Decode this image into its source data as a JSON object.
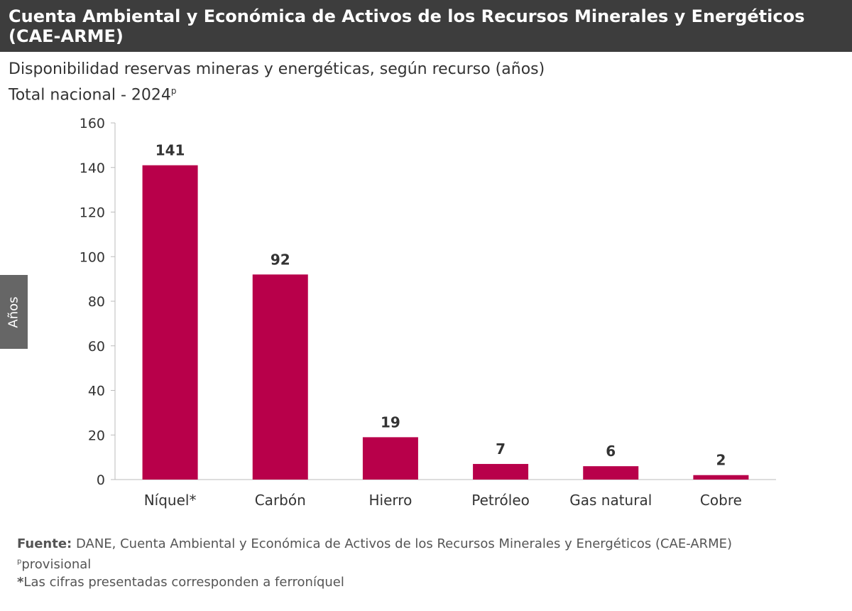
{
  "header": {
    "title": "Cuenta Ambiental y Económica de Activos de los Recursos Minerales y Energéticos (CAE-ARME)"
  },
  "chart_data": {
    "type": "bar",
    "title": "Disponibilidad reservas mineras y energéticas, según recurso (años)",
    "subtitle": "Total nacional - 2024",
    "subtitle_sup": "p",
    "ylabel": "Años",
    "xlabel": "",
    "categories": [
      "Níquel*",
      "Carbón",
      "Hierro",
      "Petróleo",
      "Gas natural",
      "Cobre"
    ],
    "values": [
      141,
      92,
      19,
      7,
      6,
      2
    ],
    "ylim": [
      0,
      160
    ],
    "yticks": [
      0,
      20,
      40,
      60,
      80,
      100,
      120,
      140,
      160
    ],
    "grid": false,
    "bar_color": "#b8004a",
    "data_labels": true
  },
  "notes": {
    "source_label": "Fuente:",
    "source_text": " DANE, Cuenta Ambiental y Económica de Activos de los Recursos Minerales y Energéticos (CAE-ARME)",
    "provisional_sup": "p",
    "provisional_text": "provisional",
    "asterisk": "*",
    "asterisk_text": "Las cifras presentadas corresponden a ferroníquel"
  }
}
